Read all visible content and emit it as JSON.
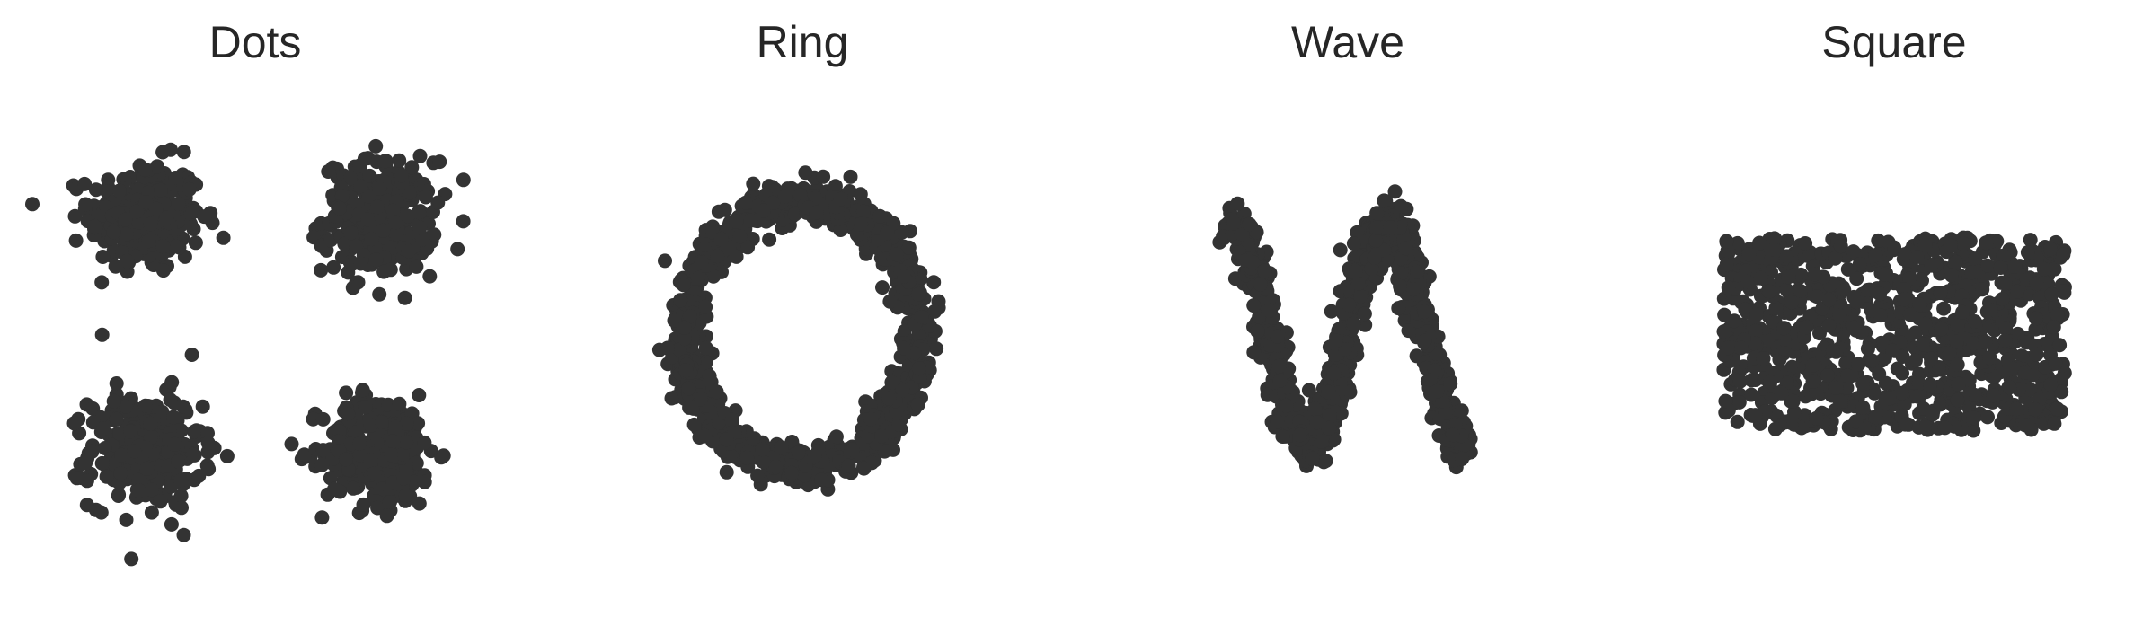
{
  "figure": {
    "marker_color": "#333333",
    "background": "#ffffff"
  },
  "chart_data": [
    {
      "type": "scatter",
      "title": "Dots",
      "axes_visible": false,
      "grid": false,
      "xlim": [
        -1.0,
        1.0
      ],
      "ylim": [
        -1.0,
        1.0
      ],
      "description_values": {
        "clusters": [
          {
            "center": [
              -0.5,
              0.5
            ],
            "spread": 0.12,
            "points": 300
          },
          {
            "center": [
              0.5,
              0.5
            ],
            "spread": 0.12,
            "points": 300
          },
          {
            "center": [
              -0.5,
              -0.5
            ],
            "spread": 0.12,
            "points": 300
          },
          {
            "center": [
              0.5,
              -0.5
            ],
            "spread": 0.12,
            "points": 300
          }
        ]
      }
    },
    {
      "type": "scatter",
      "title": "Ring",
      "axes_visible": false,
      "grid": false,
      "xlim": [
        -1.0,
        1.0
      ],
      "ylim": [
        -1.0,
        1.0
      ],
      "description_values": {
        "center": [
          0,
          0
        ],
        "radius": 0.5,
        "noise": 0.04,
        "points": 1000
      }
    },
    {
      "type": "scatter",
      "title": "Wave",
      "axes_visible": false,
      "grid": false,
      "xlim": [
        -1.0,
        1.0
      ],
      "ylim": [
        -1.0,
        1.0
      ],
      "description_values": {
        "x_range": [
          -0.5,
          0.5
        ],
        "amplitude": 0.5,
        "cycles": 1.5,
        "noise": 0.05,
        "points": 1000
      }
    },
    {
      "type": "scatter",
      "title": "Square",
      "axes_visible": false,
      "grid": false,
      "xlim": [
        -1.0,
        1.0
      ],
      "ylim": [
        -1.0,
        1.0
      ],
      "description_values": {
        "x_range": [
          -0.5,
          0.5
        ],
        "y_range": [
          -0.5,
          0.5
        ],
        "distribution": "uniform",
        "points": 1000
      }
    }
  ]
}
